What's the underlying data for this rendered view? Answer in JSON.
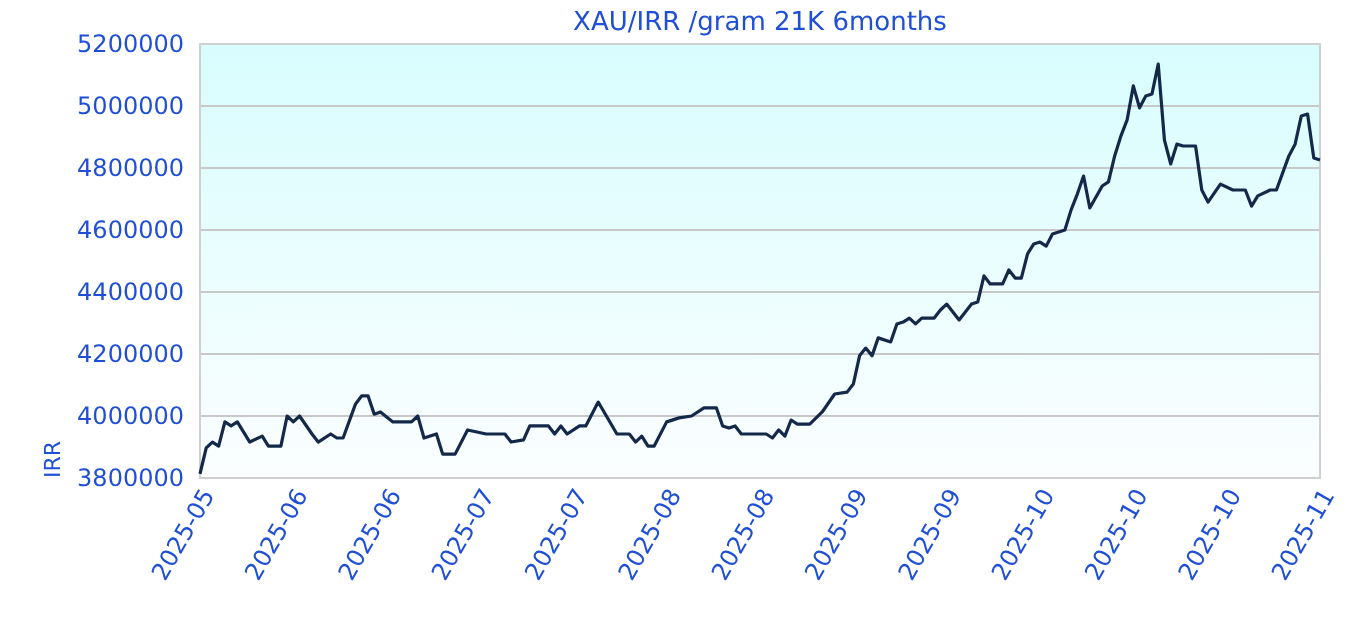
{
  "chart_data": {
    "type": "line",
    "title": "XAU/IRR /gram 21K 6months",
    "ylabel": "IRR",
    "xlim": [
      "2025-05-19",
      "2025-11-15"
    ],
    "xticks": [
      {
        "value": "2025-05-19",
        "label": "2025-05"
      },
      {
        "value": "2025-06-03",
        "label": "2025-06"
      },
      {
        "value": "2025-06-18",
        "label": "2025-06"
      },
      {
        "value": "2025-07-03",
        "label": "2025-07"
      },
      {
        "value": "2025-07-18",
        "label": "2025-07"
      },
      {
        "value": "2025-08-02",
        "label": "2025-08"
      },
      {
        "value": "2025-08-17",
        "label": "2025-08"
      },
      {
        "value": "2025-09-01",
        "label": "2025-09"
      },
      {
        "value": "2025-09-16",
        "label": "2025-09"
      },
      {
        "value": "2025-10-01",
        "label": "2025-10"
      },
      {
        "value": "2025-10-16",
        "label": "2025-10"
      },
      {
        "value": "2025-10-31",
        "label": "2025-10"
      },
      {
        "value": "2025-11-15",
        "label": "2025-11"
      }
    ],
    "ylim": [
      3800000,
      5200000
    ],
    "yticks": [
      3800000,
      4000000,
      4200000,
      4400000,
      4600000,
      4800000,
      5000000,
      5200000
    ],
    "grid": "y",
    "marker": "none",
    "line_style": "solid",
    "series": [
      {
        "color": "#14284a",
        "x": [
          "2025-05-19",
          "2025-05-20",
          "2025-05-21",
          "2025-05-22",
          "2025-05-23",
          "2025-05-24",
          "2025-05-25",
          "2025-05-27",
          "2025-05-29",
          "2025-05-30",
          "2025-06-01",
          "2025-06-02",
          "2025-06-03",
          "2025-06-04",
          "2025-06-06",
          "2025-06-07",
          "2025-06-09",
          "2025-06-10",
          "2025-06-11",
          "2025-06-13",
          "2025-06-14",
          "2025-06-15",
          "2025-06-16",
          "2025-06-17",
          "2025-06-19",
          "2025-06-22",
          "2025-06-23",
          "2025-06-24",
          "2025-06-26",
          "2025-06-27",
          "2025-06-29",
          "2025-07-01",
          "2025-07-04",
          "2025-07-07",
          "2025-07-08",
          "2025-07-10",
          "2025-07-11",
          "2025-07-14",
          "2025-07-15",
          "2025-07-16",
          "2025-07-17",
          "2025-07-19",
          "2025-07-20",
          "2025-07-22",
          "2025-07-25",
          "2025-07-27",
          "2025-07-28",
          "2025-07-29",
          "2025-07-30",
          "2025-07-31",
          "2025-08-02",
          "2025-08-04",
          "2025-08-06",
          "2025-08-08",
          "2025-08-10",
          "2025-08-11",
          "2025-08-12",
          "2025-08-13",
          "2025-08-14",
          "2025-08-18",
          "2025-08-19",
          "2025-08-20",
          "2025-08-21",
          "2025-08-22",
          "2025-08-23",
          "2025-08-25",
          "2025-08-27",
          "2025-08-29",
          "2025-08-31",
          "2025-09-01",
          "2025-09-02",
          "2025-09-03",
          "2025-09-04",
          "2025-09-05",
          "2025-09-07",
          "2025-09-08",
          "2025-09-09",
          "2025-09-10",
          "2025-09-11",
          "2025-09-12",
          "2025-09-14",
          "2025-09-15",
          "2025-09-16",
          "2025-09-18",
          "2025-09-20",
          "2025-09-21",
          "2025-09-22",
          "2025-09-23",
          "2025-09-25",
          "2025-09-26",
          "2025-09-27",
          "2025-09-28",
          "2025-09-29",
          "2025-09-30",
          "2025-10-01",
          "2025-10-02",
          "2025-10-03",
          "2025-10-05",
          "2025-10-06",
          "2025-10-07",
          "2025-10-08",
          "2025-10-09",
          "2025-10-11",
          "2025-10-12",
          "2025-10-13",
          "2025-10-14",
          "2025-10-15",
          "2025-10-16",
          "2025-10-17",
          "2025-10-18",
          "2025-10-19",
          "2025-10-20",
          "2025-10-21",
          "2025-10-22",
          "2025-10-23",
          "2025-10-24",
          "2025-10-26",
          "2025-10-27",
          "2025-10-28",
          "2025-10-30",
          "2025-11-01",
          "2025-11-03",
          "2025-11-04",
          "2025-11-05",
          "2025-11-07",
          "2025-11-08",
          "2025-11-10",
          "2025-11-11",
          "2025-11-12",
          "2025-11-13",
          "2025-11-14",
          "2025-11-15"
        ],
        "values": [
          3813000,
          3897000,
          3916000,
          3903000,
          3981000,
          3968000,
          3981000,
          3916000,
          3935000,
          3903000,
          3903000,
          4000000,
          3981000,
          4000000,
          3942000,
          3916000,
          3942000,
          3929000,
          3929000,
          4039000,
          4065000,
          4065000,
          4006000,
          4013000,
          3981000,
          3981000,
          4000000,
          3929000,
          3942000,
          3877000,
          3877000,
          3955000,
          3942000,
          3942000,
          3916000,
          3923000,
          3968000,
          3968000,
          3942000,
          3968000,
          3942000,
          3968000,
          3968000,
          4045000,
          3942000,
          3942000,
          3916000,
          3935000,
          3903000,
          3903000,
          3981000,
          3994000,
          4000000,
          4026000,
          4026000,
          3968000,
          3961000,
          3968000,
          3942000,
          3942000,
          3929000,
          3955000,
          3935000,
          3987000,
          3974000,
          3974000,
          4013000,
          4071000,
          4077000,
          4103000,
          4194000,
          4219000,
          4194000,
          4252000,
          4239000,
          4297000,
          4303000,
          4316000,
          4297000,
          4316000,
          4316000,
          4342000,
          4361000,
          4310000,
          4361000,
          4368000,
          4452000,
          4426000,
          4426000,
          4471000,
          4445000,
          4445000,
          4523000,
          4555000,
          4561000,
          4548000,
          4587000,
          4600000,
          4665000,
          4716000,
          4774000,
          4671000,
          4742000,
          4755000,
          4839000,
          4903000,
          4955000,
          5065000,
          4994000,
          5032000,
          5039000,
          5135000,
          4890000,
          4813000,
          4877000,
          4871000,
          4871000,
          4729000,
          4690000,
          4748000,
          4729000,
          4729000,
          4677000,
          4710000,
          4729000,
          4729000,
          4839000,
          4877000,
          4968000,
          4974000,
          4832000,
          4826000
        ]
      }
    ]
  }
}
